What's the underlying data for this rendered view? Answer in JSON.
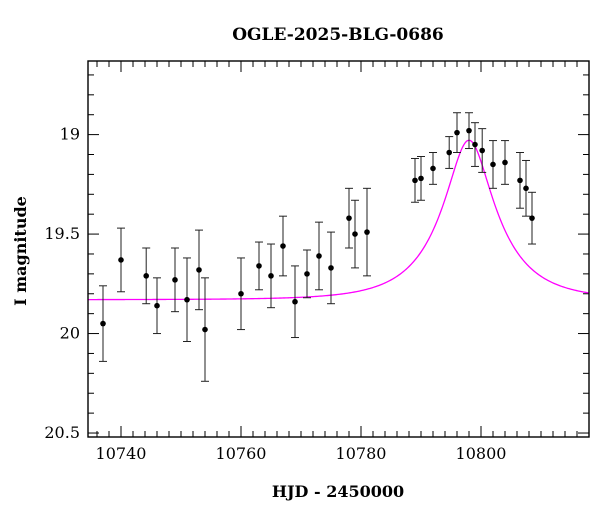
{
  "chart_data": {
    "type": "scatter",
    "title": "OGLE-2025-BLG-0686",
    "xlabel": "HJD - 2450000",
    "ylabel": "I magnitude",
    "xlim": [
      10734.5,
      10818
    ],
    "ylim": [
      20.52,
      18.63
    ],
    "y_inverted": true,
    "x_ticks": [
      10740,
      10760,
      10780,
      10800
    ],
    "y_ticks": [
      19,
      19.5,
      20,
      20.5
    ],
    "x_minor_step": 2,
    "y_minor_step": 0.1,
    "grid": false,
    "colors": {
      "points": "#000000",
      "model": "#ff00ff",
      "frame": "#000000"
    },
    "series": [
      {
        "kind": "points_with_errorbars",
        "x": [
          10737.0,
          10740.0,
          10744.2,
          10746.0,
          10749.0,
          10751.0,
          10753.0,
          10754.0,
          10760.0,
          10763.0,
          10765.0,
          10767.0,
          10769.0,
          10771.0,
          10773.0,
          10775.0,
          10778.0,
          10779.0,
          10781.0,
          10789.0,
          10790.0,
          10792.0,
          10794.7,
          10796.0,
          10798.0,
          10799.0,
          10800.2,
          10802.0,
          10804.0,
          10806.5,
          10807.5,
          10808.5
        ],
        "y": [
          19.95,
          19.63,
          19.71,
          19.86,
          19.73,
          19.83,
          19.68,
          19.98,
          19.8,
          19.66,
          19.71,
          19.56,
          19.84,
          19.7,
          19.61,
          19.67,
          19.42,
          19.5,
          19.49,
          19.23,
          19.22,
          19.17,
          19.09,
          18.99,
          18.98,
          19.05,
          19.08,
          19.15,
          19.14,
          19.23,
          19.27,
          19.42
        ],
        "err": [
          0.19,
          0.16,
          0.14,
          0.14,
          0.16,
          0.21,
          0.2,
          0.26,
          0.18,
          0.12,
          0.16,
          0.15,
          0.18,
          0.12,
          0.17,
          0.18,
          0.15,
          0.17,
          0.22,
          0.11,
          0.11,
          0.08,
          0.08,
          0.1,
          0.09,
          0.11,
          0.11,
          0.12,
          0.11,
          0.14,
          0.14,
          0.13
        ]
      },
      {
        "kind": "model_curve",
        "model": {
          "t0": 10798.0,
          "tE": 10.0,
          "u0": 0.35,
          "baseline": 19.83,
          "fs": 0.55
        }
      }
    ]
  }
}
